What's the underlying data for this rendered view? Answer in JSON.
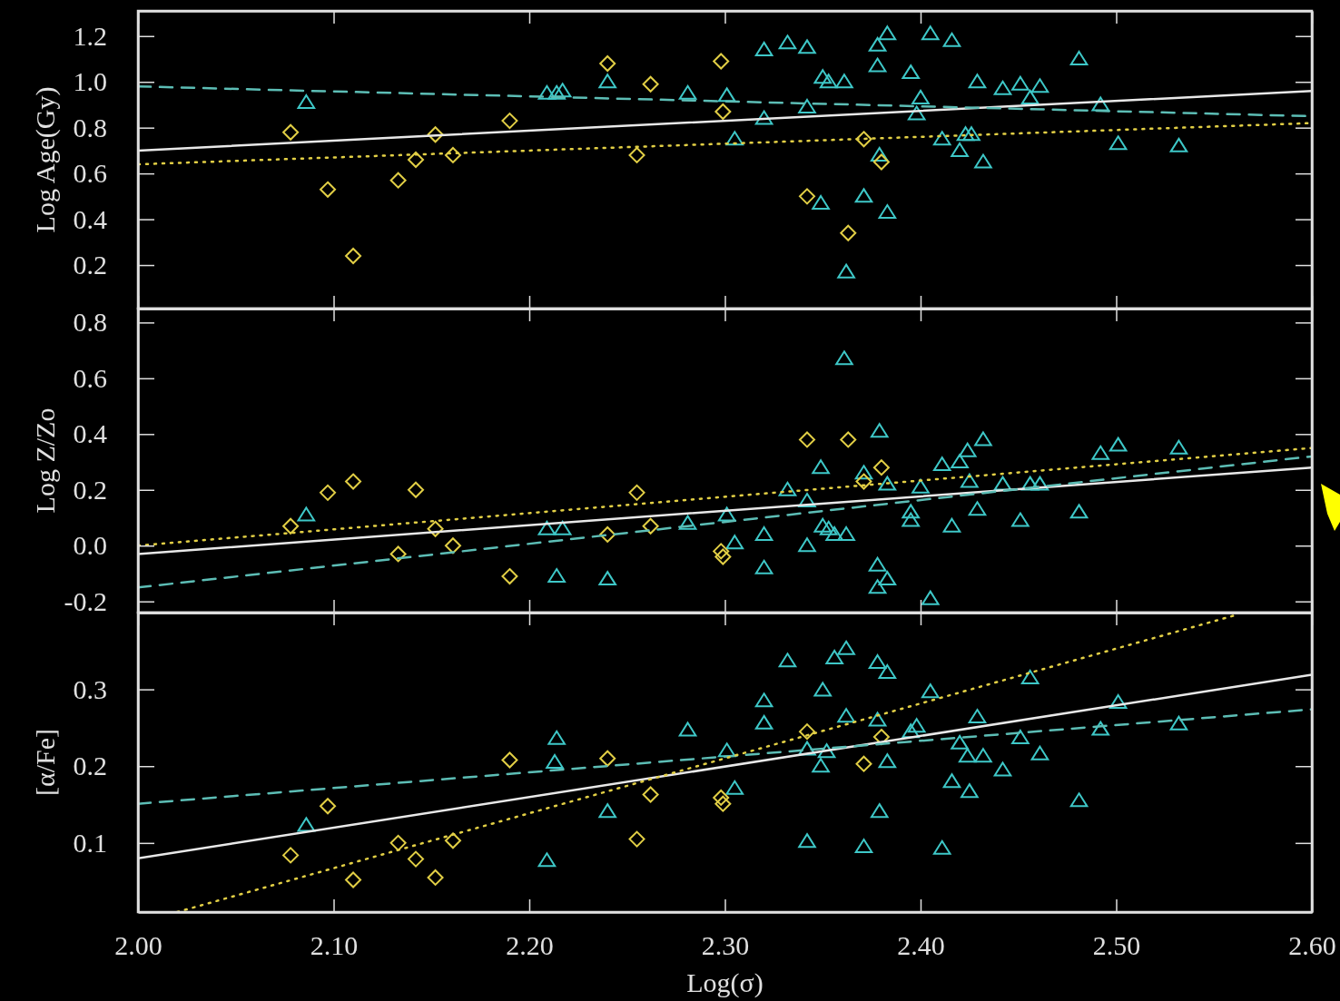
{
  "chart_data": [
    {
      "type": "scatter",
      "ylabel": "Log Age(Gy)",
      "xlim": [
        2,
        2.6
      ],
      "ylim": [
        0.01,
        1.31
      ],
      "tick_labels": "y",
      "xticks": [
        {
          "value": 2,
          "label": null
        },
        {
          "value": 2.1,
          "label": null
        },
        {
          "value": 2.2,
          "label": null
        },
        {
          "value": 2.3,
          "label": null
        },
        {
          "value": 2.4,
          "label": null
        },
        {
          "value": 2.5,
          "label": null
        },
        {
          "value": 2.6,
          "label": null
        }
      ],
      "yticks": [
        0.2,
        0.4,
        0.6,
        0.8,
        {
          "value": 1,
          "label": "1.0"
        },
        1.2
      ],
      "series": [
        {
          "type": "scatter",
          "marker": "triangle",
          "color": "#3ec8c8",
          "x": [
            2.086,
            2.209,
            2.214,
            2.217,
            2.24,
            2.281,
            2.301,
            2.305,
            2.32,
            2.32,
            2.332,
            2.342,
            2.342,
            2.349,
            2.35,
            2.353,
            2.361,
            2.362,
            2.371,
            2.378,
            2.378,
            2.379,
            2.383,
            2.383,
            2.395,
            2.398,
            2.4,
            2.405,
            2.411,
            2.416,
            2.42,
            2.423,
            2.426,
            2.429,
            2.432,
            2.442,
            2.451,
            2.456,
            2.461,
            2.481,
            2.492,
            2.501,
            2.532
          ],
          "values": [
            0.91,
            0.95,
            0.95,
            0.96,
            1.0,
            0.95,
            0.94,
            0.75,
            0.84,
            1.14,
            1.17,
            1.15,
            0.89,
            0.47,
            1.02,
            1.0,
            1.0,
            0.17,
            0.5,
            1.16,
            1.07,
            0.68,
            1.21,
            0.43,
            1.04,
            0.86,
            0.93,
            1.21,
            0.75,
            1.18,
            0.7,
            0.77,
            0.77,
            1.0,
            0.65,
            0.97,
            0.99,
            0.93,
            0.98,
            1.1,
            0.9,
            0.73,
            0.72
          ]
        },
        {
          "type": "scatter",
          "marker": "diamond",
          "color": "#e2cf45",
          "x": [
            2.078,
            2.097,
            2.11,
            2.133,
            2.142,
            2.152,
            2.161,
            2.19,
            2.24,
            2.255,
            2.262,
            2.298,
            2.299,
            2.342,
            2.363,
            2.371,
            2.38
          ],
          "values": [
            0.78,
            0.53,
            0.24,
            0.57,
            0.66,
            0.77,
            0.68,
            0.83,
            1.08,
            0.68,
            0.99,
            1.09,
            0.87,
            0.5,
            0.34,
            0.75,
            0.65
          ]
        },
        {
          "type": "line",
          "marker": "none",
          "line_style": "solid",
          "color": "#e8e8e8",
          "x": [
            2,
            2.6
          ],
          "values": [
            0.7,
            0.96
          ]
        },
        {
          "type": "line",
          "marker": "none",
          "line_style": "dashed",
          "color": "#5cbdb5",
          "x": [
            2,
            2.6
          ],
          "values": [
            0.98,
            0.85
          ]
        },
        {
          "type": "line",
          "marker": "none",
          "line_style": "dotted",
          "color": "#e2cf45",
          "x": [
            2,
            2.6
          ],
          "values": [
            0.64,
            0.82
          ]
        }
      ]
    },
    {
      "type": "scatter",
      "ylabel": "Log Z/Zo",
      "xlim": [
        2,
        2.6
      ],
      "ylim": [
        -0.24,
        0.85
      ],
      "tick_labels": "y",
      "xticks": [
        {
          "value": 2,
          "label": null
        },
        {
          "value": 2.1,
          "label": null
        },
        {
          "value": 2.2,
          "label": null
        },
        {
          "value": 2.3,
          "label": null
        },
        {
          "value": 2.4,
          "label": null
        },
        {
          "value": 2.5,
          "label": null
        },
        {
          "value": 2.6,
          "label": null
        }
      ],
      "yticks": [
        -0.2,
        {
          "value": 0,
          "label": "0.0"
        },
        0.2,
        0.4,
        0.6,
        0.8
      ],
      "series": [
        {
          "type": "scatter",
          "marker": "triangle",
          "color": "#3ec8c8",
          "x": [
            2.086,
            2.209,
            2.217,
            2.214,
            2.24,
            2.281,
            2.301,
            2.305,
            2.32,
            2.32,
            2.332,
            2.342,
            2.342,
            2.349,
            2.35,
            2.353,
            2.356,
            2.362,
            2.361,
            2.371,
            2.378,
            2.378,
            2.383,
            2.379,
            2.383,
            2.395,
            2.395,
            2.4,
            2.405,
            2.411,
            2.416,
            2.42,
            2.424,
            2.425,
            2.429,
            2.432,
            2.442,
            2.451,
            2.456,
            2.461,
            2.481,
            2.492,
            2.501,
            2.532
          ],
          "values": [
            0.11,
            0.06,
            0.06,
            -0.11,
            -0.12,
            0.08,
            0.11,
            0.01,
            0.04,
            -0.08,
            0.2,
            0.16,
            0.0,
            0.28,
            0.07,
            0.06,
            0.04,
            0.04,
            0.67,
            0.26,
            -0.07,
            -0.15,
            -0.12,
            0.41,
            0.22,
            0.12,
            0.09,
            0.21,
            -0.19,
            0.29,
            0.07,
            0.3,
            0.34,
            0.23,
            0.13,
            0.38,
            0.22,
            0.09,
            0.22,
            0.22,
            0.12,
            0.33,
            0.36,
            0.35
          ]
        },
        {
          "type": "scatter",
          "marker": "diamond",
          "color": "#e2cf45",
          "x": [
            2.078,
            2.097,
            2.11,
            2.133,
            2.142,
            2.152,
            2.161,
            2.19,
            2.24,
            2.255,
            2.262,
            2.298,
            2.299,
            2.342,
            2.363,
            2.371,
            2.38
          ],
          "values": [
            0.07,
            0.19,
            0.23,
            -0.03,
            0.2,
            0.06,
            0.0,
            -0.11,
            0.04,
            0.19,
            0.07,
            -0.02,
            -0.04,
            0.38,
            0.38,
            0.23,
            0.28
          ]
        },
        {
          "type": "line",
          "marker": "none",
          "line_style": "solid",
          "color": "#e8e8e8",
          "x": [
            2,
            2.6
          ],
          "values": [
            -0.03,
            0.28
          ]
        },
        {
          "type": "line",
          "marker": "none",
          "line_style": "dashed",
          "color": "#5cbdb5",
          "x": [
            2,
            2.6
          ],
          "values": [
            -0.15,
            0.32
          ]
        },
        {
          "type": "line",
          "marker": "none",
          "line_style": "dotted",
          "color": "#e2cf45",
          "x": [
            2,
            2.6
          ],
          "values": [
            0.0,
            0.35
          ]
        }
      ]
    },
    {
      "type": "scatter",
      "xlabel": "Log(σ)",
      "ylabel": "[α/Fe]",
      "xlim": [
        2,
        2.6
      ],
      "ylim": [
        0.01,
        0.4
      ],
      "xticks": [
        {
          "value": 2,
          "label": "2.00"
        },
        {
          "value": 2.1,
          "label": "2.10"
        },
        {
          "value": 2.2,
          "label": "2.20"
        },
        {
          "value": 2.3,
          "label": "2.30"
        },
        {
          "value": 2.4,
          "label": "2.40"
        },
        {
          "value": 2.5,
          "label": "2.50"
        },
        {
          "value": 2.6,
          "label": "2.60"
        }
      ],
      "yticks": [
        0.1,
        0.2,
        0.3
      ],
      "series": [
        {
          "type": "scatter",
          "marker": "triangle",
          "color": "#3ec8c8",
          "x": [
            2.086,
            2.209,
            2.214,
            2.213,
            2.24,
            2.281,
            2.301,
            2.305,
            2.32,
            2.32,
            2.332,
            2.342,
            2.342,
            2.349,
            2.35,
            2.352,
            2.356,
            2.362,
            2.362,
            2.371,
            2.378,
            2.383,
            2.378,
            2.379,
            2.383,
            2.395,
            2.398,
            2.405,
            2.411,
            2.416,
            2.42,
            2.424,
            2.425,
            2.429,
            2.432,
            2.442,
            2.451,
            2.456,
            2.461,
            2.481,
            2.492,
            2.501,
            2.532
          ],
          "values": [
            0.123,
            0.077,
            0.236,
            0.205,
            0.141,
            0.247,
            0.22,
            0.171,
            0.285,
            0.256,
            0.337,
            0.222,
            0.102,
            0.2,
            0.299,
            0.219,
            0.341,
            0.353,
            0.265,
            0.095,
            0.335,
            0.322,
            0.26,
            0.141,
            0.206,
            0.245,
            0.252,
            0.297,
            0.093,
            0.18,
            0.23,
            0.213,
            0.167,
            0.264,
            0.213,
            0.195,
            0.237,
            0.315,
            0.216,
            0.155,
            0.248,
            0.283,
            0.255
          ]
        },
        {
          "type": "scatter",
          "marker": "diamond",
          "color": "#e2cf45",
          "x": [
            2.078,
            2.097,
            2.11,
            2.133,
            2.142,
            2.152,
            2.161,
            2.19,
            2.24,
            2.255,
            2.262,
            2.298,
            2.299,
            2.342,
            2.371,
            2.38
          ],
          "values": [
            0.084,
            0.148,
            0.052,
            0.1,
            0.079,
            0.055,
            0.103,
            0.208,
            0.21,
            0.105,
            0.163,
            0.159,
            0.151,
            0.245,
            0.203,
            0.238
          ]
        },
        {
          "type": "line",
          "marker": "none",
          "line_style": "solid",
          "color": "#e8e8e8",
          "x": [
            2,
            2.6
          ],
          "values": [
            0.08,
            0.319
          ]
        },
        {
          "type": "line",
          "marker": "none",
          "line_style": "dashed",
          "color": "#5cbdb5",
          "x": [
            2,
            2.6
          ],
          "values": [
            0.151,
            0.274
          ]
        },
        {
          "type": "line",
          "marker": "none",
          "line_style": "dotted",
          "color": "#e2cf45",
          "x": [
            2.02,
            2.56
          ],
          "values": [
            0.01,
            0.396
          ]
        }
      ]
    }
  ]
}
